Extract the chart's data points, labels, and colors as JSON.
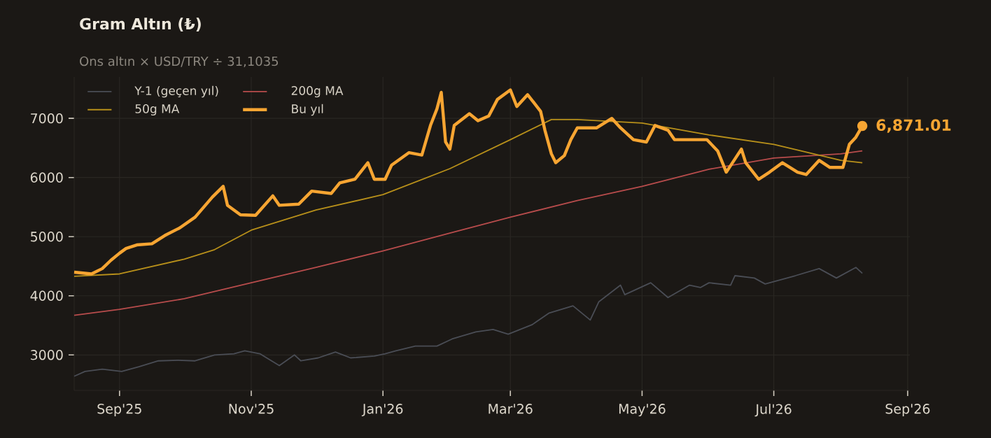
{
  "chart_data": {
    "type": "line",
    "title": "Gram Altın (₺)",
    "subtitle": "Ons altın × USD/TRY ÷ 31,1035",
    "xlim": [
      "2025-08-11",
      "2026-09-02"
    ],
    "xticks": [
      {
        "value": "2025-09-01",
        "label": "Sep'25"
      },
      {
        "value": "2025-11-01",
        "label": "Nov'25"
      },
      {
        "value": "2026-01-01",
        "label": "Jan'26"
      },
      {
        "value": "2026-03-01",
        "label": "Mar'26"
      },
      {
        "value": "2026-05-01",
        "label": "May'26"
      },
      {
        "value": "2026-07-01",
        "label": "Jul'26"
      },
      {
        "value": "2026-09-01",
        "label": "Sep'26"
      }
    ],
    "ylim": [
      2400,
      7700
    ],
    "yticks": [
      3000,
      4000,
      5000,
      6000,
      7000
    ],
    "grid": true,
    "legend": "top left",
    "marker": "none",
    "line_style": "solid",
    "annotations": [
      {
        "text": "6,871.01",
        "x": "2026-08-11",
        "y": 6871.01
      }
    ],
    "series": [
      {
        "name": "Y-1 (geçen yıl)",
        "color": "#4a4d55",
        "x": [
          "2025-08-11",
          "2025-08-16",
          "2025-08-24",
          "2025-09-02",
          "2025-09-10",
          "2025-09-19",
          "2025-09-28",
          "2025-10-06",
          "2025-10-15",
          "2025-10-24",
          "2025-10-29",
          "2025-11-05",
          "2025-11-14",
          "2025-11-21",
          "2025-11-24",
          "2025-12-02",
          "2025-12-10",
          "2025-12-17",
          "2025-12-28",
          "2026-01-02",
          "2026-01-07",
          "2026-01-16",
          "2026-01-26",
          "2026-02-02",
          "2026-02-13",
          "2026-02-21",
          "2026-02-28",
          "2026-03-11",
          "2026-03-19",
          "2026-03-30",
          "2026-04-07",
          "2026-04-11",
          "2026-04-21",
          "2026-04-23",
          "2026-05-05",
          "2026-05-13",
          "2026-05-23",
          "2026-05-28",
          "2026-06-01",
          "2026-06-11",
          "2026-06-13",
          "2026-06-22",
          "2026-06-27",
          "2026-07-11",
          "2026-07-22",
          "2026-07-30",
          "2026-08-08",
          "2026-08-11"
        ],
        "values": [
          2640,
          2720,
          2760,
          2720,
          2800,
          2900,
          2910,
          2900,
          3000,
          3020,
          3070,
          3020,
          2820,
          3000,
          2900,
          2950,
          3050,
          2950,
          2980,
          3020,
          3070,
          3150,
          3150,
          3270,
          3390,
          3430,
          3350,
          3510,
          3710,
          3830,
          3590,
          3900,
          4180,
          4020,
          4220,
          3970,
          4180,
          4140,
          4220,
          4180,
          4340,
          4300,
          4200,
          4340,
          4460,
          4300,
          4480,
          4380
        ]
      },
      {
        "name": "200g MA",
        "color": "#b84c4c",
        "x": [
          "2025-08-11",
          "2025-09-01",
          "2025-10-01",
          "2025-11-01",
          "2025-12-01",
          "2026-01-01",
          "2026-02-01",
          "2026-03-01",
          "2026-04-01",
          "2026-05-01",
          "2026-06-01",
          "2026-07-01",
          "2026-08-01",
          "2026-08-11"
        ],
        "values": [
          3670,
          3770,
          3950,
          4220,
          4480,
          4760,
          5060,
          5330,
          5610,
          5850,
          6140,
          6330,
          6400,
          6450
        ]
      },
      {
        "name": "50g MA",
        "color": "#b8901a",
        "x": [
          "2025-08-11",
          "2025-09-01",
          "2025-10-01",
          "2025-10-15",
          "2025-11-01",
          "2025-12-01",
          "2026-01-01",
          "2026-02-01",
          "2026-03-01",
          "2026-03-20",
          "2026-04-01",
          "2026-05-01",
          "2026-06-01",
          "2026-07-01",
          "2026-08-01",
          "2026-08-11"
        ],
        "values": [
          4330,
          4370,
          4620,
          4780,
          5110,
          5450,
          5710,
          6150,
          6640,
          6980,
          6980,
          6920,
          6720,
          6560,
          6290,
          6250
        ]
      },
      {
        "name": "Bu yıl",
        "color": "#f7a532",
        "x": [
          "2025-08-11",
          "2025-08-19",
          "2025-08-24",
          "2025-08-28",
          "2025-09-01",
          "2025-09-04",
          "2025-09-09",
          "2025-09-16",
          "2025-09-22",
          "2025-09-29",
          "2025-10-06",
          "2025-10-14",
          "2025-10-19",
          "2025-10-21",
          "2025-10-27",
          "2025-11-03",
          "2025-11-11",
          "2025-11-14",
          "2025-11-23",
          "2025-11-29",
          "2025-12-08",
          "2025-12-12",
          "2025-12-19",
          "2025-12-25",
          "2025-12-28",
          "2026-01-02",
          "2026-01-05",
          "2026-01-13",
          "2026-01-19",
          "2026-01-23",
          "2026-01-26",
          "2026-01-28",
          "2026-01-30",
          "2026-02-01",
          "2026-02-03",
          "2026-02-10",
          "2026-02-14",
          "2026-02-19",
          "2026-02-23",
          "2026-03-01",
          "2026-03-04",
          "2026-03-09",
          "2026-03-15",
          "2026-03-17",
          "2026-03-20",
          "2026-03-22",
          "2026-03-26",
          "2026-03-29",
          "2026-04-01",
          "2026-04-10",
          "2026-04-17",
          "2026-04-21",
          "2026-04-27",
          "2026-05-03",
          "2026-05-07",
          "2026-05-13",
          "2026-05-16",
          "2026-05-31",
          "2026-06-05",
          "2026-06-09",
          "2026-06-16",
          "2026-06-18",
          "2026-06-24",
          "2026-06-29",
          "2026-07-05",
          "2026-07-12",
          "2026-07-16",
          "2026-07-22",
          "2026-07-27",
          "2026-08-02",
          "2026-08-05",
          "2026-08-08",
          "2026-08-11"
        ],
        "values": [
          4400,
          4370,
          4460,
          4600,
          4720,
          4800,
          4860,
          4880,
          5020,
          5150,
          5330,
          5670,
          5850,
          5530,
          5370,
          5360,
          5690,
          5530,
          5550,
          5770,
          5730,
          5910,
          5970,
          6250,
          5970,
          5970,
          6210,
          6420,
          6380,
          6880,
          7160,
          7440,
          6600,
          6480,
          6880,
          7080,
          6960,
          7040,
          7320,
          7480,
          7200,
          7400,
          7120,
          6800,
          6400,
          6250,
          6370,
          6640,
          6840,
          6840,
          7000,
          6840,
          6640,
          6600,
          6880,
          6800,
          6640,
          6640,
          6450,
          6090,
          6480,
          6250,
          5970,
          6090,
          6250,
          6090,
          6050,
          6290,
          6170,
          6170,
          6560,
          6680,
          6871.01
        ]
      }
    ]
  }
}
